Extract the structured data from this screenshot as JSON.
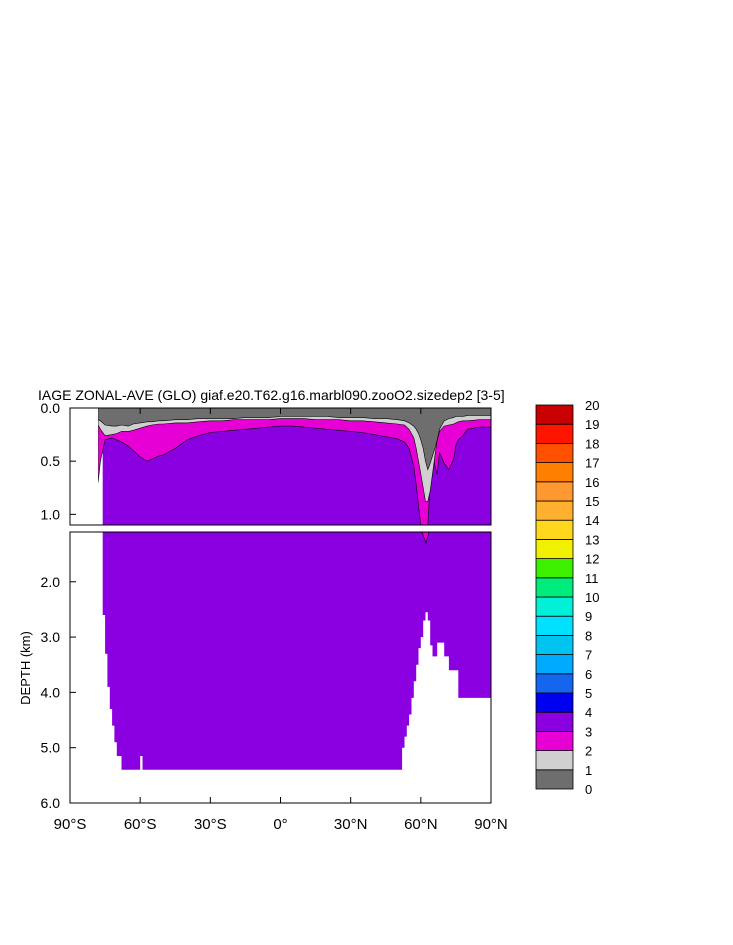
{
  "title": "IAGE ZONAL-AVE (GLO) giaf.e20.T62.g16.marbl090.zooO2.sizedep2 [3-5]",
  "chart_data": {
    "type": "filled-contour",
    "title": "IAGE ZONAL-AVE (GLO) giaf.e20.T62.g16.marbl090.zooO2.sizedep2 [3-5]",
    "xlabel": "",
    "ylabel": "DEPTH (km)",
    "xlim": [
      -90,
      90
    ],
    "upper_panel_ylim": [
      0,
      1.1
    ],
    "lower_panel_ylim": [
      1.1,
      6.0
    ],
    "x_ticks": [
      -90,
      -60,
      -30,
      0,
      30,
      60,
      90
    ],
    "x_tick_labels": [
      "90°S",
      "60°S",
      "30°S",
      "0°",
      "30°N",
      "60°N",
      "90°N"
    ],
    "upper_y_ticks": [
      0.0,
      0.5,
      1.0
    ],
    "upper_y_tick_labels": [
      "0.0",
      "0.5",
      "1.0"
    ],
    "lower_y_ticks": [
      2.0,
      3.0,
      4.0,
      5.0,
      6.0
    ],
    "lower_y_tick_labels": [
      "2.0",
      "3.0",
      "4.0",
      "5.0",
      "6.0"
    ],
    "levels": [
      "0",
      "1",
      "2",
      "3",
      "4",
      "5",
      "6",
      "7",
      "8",
      "9",
      "10",
      "11",
      "12",
      "13",
      "14",
      "15",
      "16",
      "17",
      "18",
      "19",
      "20"
    ],
    "level_colors": [
      "#6e6e6e",
      "#d0d0d0",
      "#e600d6",
      "#8a00e0",
      "#0000f0",
      "#1466ee",
      "#00aaff",
      "#00c4f0",
      "#00e0ff",
      "#00f0d8",
      "#00ec7c",
      "#3cf000",
      "#f0f000",
      "#ffd81e",
      "#ffb030",
      "#ff9830",
      "#ff8000",
      "#ff5000",
      "#ff1400",
      "#e80000",
      "#c80000"
    ],
    "colorbar_labels": [
      "0",
      "1",
      "2",
      "3",
      "4",
      "5",
      "6",
      "7",
      "8",
      "9",
      "10",
      "11",
      "12",
      "13",
      "14",
      "15",
      "16",
      "17",
      "18",
      "19",
      "20"
    ],
    "profiles": {
      "lat": [
        -78,
        -77,
        -75,
        -72,
        -70,
        -68,
        -65,
        -63,
        -60,
        -57,
        -55,
        -52,
        -50,
        -45,
        -40,
        -35,
        -30,
        -25,
        -20,
        -15,
        -10,
        -5,
        0,
        5,
        10,
        15,
        20,
        25,
        30,
        35,
        40,
        45,
        50,
        53,
        55,
        57,
        58,
        59,
        60,
        61,
        62,
        63,
        64,
        65,
        66,
        67,
        68,
        70,
        72,
        74,
        75,
        76,
        78,
        80,
        85,
        90
      ],
      "gray_bottom_km": [
        0.11,
        0.12,
        0.16,
        0.17,
        0.17,
        0.16,
        0.17,
        0.15,
        0.14,
        0.13,
        0.13,
        0.12,
        0.12,
        0.11,
        0.11,
        0.1,
        0.1,
        0.1,
        0.1,
        0.09,
        0.09,
        0.09,
        0.08,
        0.08,
        0.08,
        0.08,
        0.08,
        0.09,
        0.09,
        0.09,
        0.1,
        0.1,
        0.11,
        0.12,
        0.14,
        0.17,
        0.2,
        0.24,
        0.3,
        0.38,
        0.5,
        0.58,
        0.52,
        0.45,
        0.38,
        0.3,
        0.2,
        0.12,
        0.1,
        0.09,
        0.08,
        0.08,
        0.08,
        0.07,
        0.07,
        0.07
      ],
      "lightgray_bottom_km": [
        0.16,
        0.2,
        0.26,
        0.25,
        0.24,
        0.22,
        0.22,
        0.21,
        0.19,
        0.17,
        0.16,
        0.15,
        0.15,
        0.14,
        0.14,
        0.13,
        0.12,
        0.12,
        0.11,
        0.11,
        0.11,
        0.11,
        0.1,
        0.1,
        0.1,
        0.11,
        0.11,
        0.11,
        0.12,
        0.12,
        0.13,
        0.14,
        0.15,
        0.16,
        0.2,
        0.28,
        0.38,
        0.5,
        0.62,
        0.75,
        0.88,
        0.88,
        0.78,
        0.62,
        0.45,
        0.3,
        0.22,
        0.17,
        0.16,
        0.15,
        0.14,
        0.13,
        0.12,
        0.12,
        0.11,
        0.11
      ],
      "magenta_bottom_km": [
        0.7,
        0.5,
        0.3,
        0.28,
        0.3,
        0.32,
        0.36,
        0.4,
        0.46,
        0.5,
        0.48,
        0.45,
        0.44,
        0.38,
        0.3,
        0.26,
        0.23,
        0.22,
        0.21,
        0.2,
        0.19,
        0.18,
        0.17,
        0.17,
        0.18,
        0.19,
        0.2,
        0.21,
        0.22,
        0.23,
        0.25,
        0.27,
        0.29,
        0.32,
        0.38,
        0.55,
        0.72,
        0.92,
        1.1,
        1.2,
        1.2,
        1.1,
        0.7,
        0.35,
        0.55,
        0.62,
        0.42,
        0.52,
        0.58,
        0.48,
        0.35,
        0.3,
        0.26,
        0.2,
        0.18,
        0.18
      ]
    },
    "bathymetry": {
      "lat": [
        -90,
        -76,
        -76,
        -75,
        -75,
        -74,
        -74,
        -73,
        -73,
        -72,
        -72,
        -71,
        -71,
        -70,
        -70,
        -68,
        -68,
        -65,
        -65,
        -60,
        -60,
        -59,
        -59,
        -57,
        -57,
        -53,
        -53,
        -49,
        -49,
        52,
        52,
        53,
        53,
        54,
        54,
        55,
        55,
        56,
        56,
        57,
        57,
        58,
        58,
        59,
        59,
        60,
        60,
        61,
        61,
        62,
        62,
        63,
        63,
        64,
        64,
        65,
        65,
        67,
        67,
        70,
        70,
        72,
        72,
        76,
        76,
        83,
        83,
        90,
        90
      ],
      "depth_km": [
        0,
        0,
        2.6,
        2.6,
        3.3,
        3.3,
        3.9,
        3.9,
        4.3,
        4.3,
        4.6,
        4.6,
        4.9,
        4.9,
        5.15,
        5.15,
        5.4,
        5.4,
        5.4,
        5.4,
        5.15,
        5.15,
        5.4,
        5.4,
        5.4,
        5.4,
        5.4,
        5.4,
        5.4,
        5.4,
        5.0,
        5.0,
        4.8,
        4.8,
        4.6,
        4.6,
        4.4,
        4.4,
        4.1,
        4.1,
        3.8,
        3.8,
        3.5,
        3.5,
        3.2,
        3.2,
        3.0,
        3.0,
        2.7,
        2.7,
        2.55,
        2.55,
        2.7,
        2.7,
        3.15,
        3.15,
        3.35,
        3.35,
        3.1,
        3.1,
        3.35,
        3.35,
        3.6,
        3.6,
        4.1,
        4.1,
        4.1,
        4.1,
        0
      ]
    }
  }
}
